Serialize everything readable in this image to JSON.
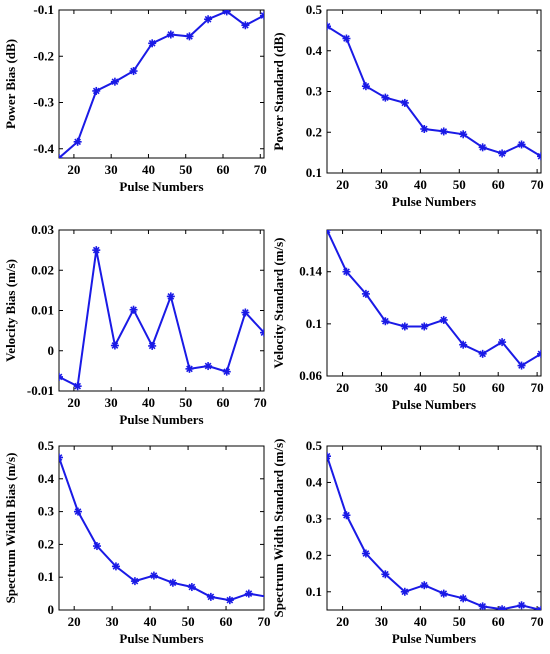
{
  "chart_data": [
    {
      "type": "line",
      "xlabel": "Pulse Numbers",
      "ylabel": "Power Bias (dB)",
      "x": [
        16,
        21,
        26,
        31,
        36,
        41,
        46,
        51,
        56,
        61,
        66,
        71
      ],
      "values": [
        -0.42,
        -0.385,
        -0.275,
        -0.255,
        -0.232,
        -0.172,
        -0.153,
        -0.157,
        -0.12,
        -0.103,
        -0.133,
        -0.112
      ],
      "xlim": [
        16,
        71
      ],
      "ylim": [
        -0.42,
        -0.1
      ],
      "xticks": [
        20,
        30,
        40,
        50,
        60,
        70
      ],
      "yticks": [
        -0.4,
        -0.3,
        -0.2,
        -0.1
      ],
      "xtick_labels": [
        "20",
        "30",
        "40",
        "50",
        "60",
        "70"
      ],
      "ytick_labels": [
        "-0.4",
        "-0.3",
        "-0.2",
        "-0.1"
      ],
      "grid": false,
      "color": "#1a1ae6",
      "marker": "asterisk"
    },
    {
      "type": "line",
      "xlabel": "Pulse Numbers",
      "ylabel": "Power Standard (dB)",
      "x": [
        16,
        21,
        26,
        31,
        36,
        41,
        46,
        51,
        56,
        61,
        66,
        71
      ],
      "values": [
        0.46,
        0.43,
        0.313,
        0.285,
        0.272,
        0.208,
        0.202,
        0.195,
        0.163,
        0.148,
        0.17,
        0.141
      ],
      "xlim": [
        16,
        71
      ],
      "ylim": [
        0.1,
        0.5
      ],
      "xticks": [
        20,
        30,
        40,
        50,
        60,
        70
      ],
      "yticks": [
        0.1,
        0.2,
        0.3,
        0.4,
        0.5
      ],
      "xtick_labels": [
        "20",
        "30",
        "40",
        "50",
        "60",
        "70"
      ],
      "ytick_labels": [
        "0.1",
        "0.2",
        "0.3",
        "0.4",
        "0.5"
      ],
      "grid": false,
      "color": "#1a1ae6",
      "marker": "asterisk"
    },
    {
      "type": "line",
      "xlabel": "Pulse Numbers",
      "ylabel": "Velocity Bias (m/s)",
      "x": [
        16,
        21,
        26,
        31,
        36,
        41,
        46,
        51,
        56,
        61,
        66,
        71
      ],
      "values": [
        -0.0065,
        -0.0088,
        0.025,
        0.0013,
        0.0102,
        0.0012,
        0.0135,
        -0.0045,
        -0.0038,
        -0.0052,
        0.0095,
        0.0045
      ],
      "xlim": [
        16,
        71
      ],
      "ylim": [
        -0.01,
        0.03
      ],
      "xticks": [
        20,
        30,
        40,
        50,
        60,
        70
      ],
      "yticks": [
        -0.01,
        0,
        0.01,
        0.02,
        0.03
      ],
      "xtick_labels": [
        "20",
        "30",
        "40",
        "50",
        "60",
        "70"
      ],
      "ytick_labels": [
        "-0.01",
        "0",
        "0.01",
        "0.02",
        "0.03"
      ],
      "grid": false,
      "color": "#1a1ae6",
      "marker": "asterisk"
    },
    {
      "type": "line",
      "xlabel": "Pulse Numbers",
      "ylabel": "Velocity Standard (m/s)",
      "x": [
        16,
        21,
        26,
        31,
        36,
        41,
        46,
        51,
        56,
        61,
        66,
        71
      ],
      "values": [
        0.172,
        0.14,
        0.123,
        0.102,
        0.098,
        0.098,
        0.103,
        0.084,
        0.077,
        0.086,
        0.068,
        0.077
      ],
      "xlim": [
        16,
        71
      ],
      "ylim": [
        0.06,
        0.172
      ],
      "xticks": [
        20,
        30,
        40,
        50,
        60,
        70
      ],
      "yticks": [
        0.06,
        0.1,
        0.14
      ],
      "xtick_labels": [
        "20",
        "30",
        "40",
        "50",
        "60",
        "70"
      ],
      "ytick_labels": [
        "0.06",
        "0.1",
        "0.14"
      ],
      "grid": false,
      "color": "#1a1ae6",
      "marker": "asterisk"
    },
    {
      "type": "line",
      "xlabel": "Pulse Numbers",
      "ylabel": "Spectrum Width Bias (m/s)",
      "x": [
        16,
        21,
        26,
        31,
        36,
        41,
        46,
        51,
        56,
        61,
        66,
        71
      ],
      "values": [
        0.465,
        0.3,
        0.195,
        0.133,
        0.088,
        0.105,
        0.083,
        0.07,
        0.04,
        0.03,
        0.05,
        0.04
      ],
      "xlim": [
        16,
        70
      ],
      "ylim": [
        0,
        0.5
      ],
      "xticks": [
        20,
        30,
        40,
        50,
        60,
        70
      ],
      "yticks": [
        0,
        0.1,
        0.2,
        0.3,
        0.4,
        0.5
      ],
      "xtick_labels": [
        "20",
        "30",
        "40",
        "50",
        "60",
        "70"
      ],
      "ytick_labels": [
        "0",
        "0.1",
        "0.2",
        "0.3",
        "0.4",
        "0.5"
      ],
      "grid": false,
      "color": "#1a1ae6",
      "marker": "asterisk"
    },
    {
      "type": "line",
      "xlabel": "Pulse Numbers",
      "ylabel": "Spectrum Width Standard (m/s)",
      "x": [
        16,
        21,
        26,
        31,
        36,
        41,
        46,
        51,
        56,
        61,
        66,
        71
      ],
      "values": [
        0.472,
        0.31,
        0.205,
        0.148,
        0.1,
        0.118,
        0.095,
        0.082,
        0.06,
        0.052,
        0.063,
        0.05
      ],
      "xlim": [
        16,
        71
      ],
      "ylim": [
        0.05,
        0.5
      ],
      "xticks": [
        20,
        30,
        40,
        50,
        60,
        70
      ],
      "yticks": [
        0.1,
        0.2,
        0.3,
        0.4,
        0.5
      ],
      "xtick_labels": [
        "20",
        "30",
        "40",
        "50",
        "60",
        "70"
      ],
      "ytick_labels": [
        "0.1",
        "0.2",
        "0.3",
        "0.4",
        "0.5"
      ],
      "grid": false,
      "color": "#1a1ae6",
      "marker": "asterisk"
    }
  ]
}
